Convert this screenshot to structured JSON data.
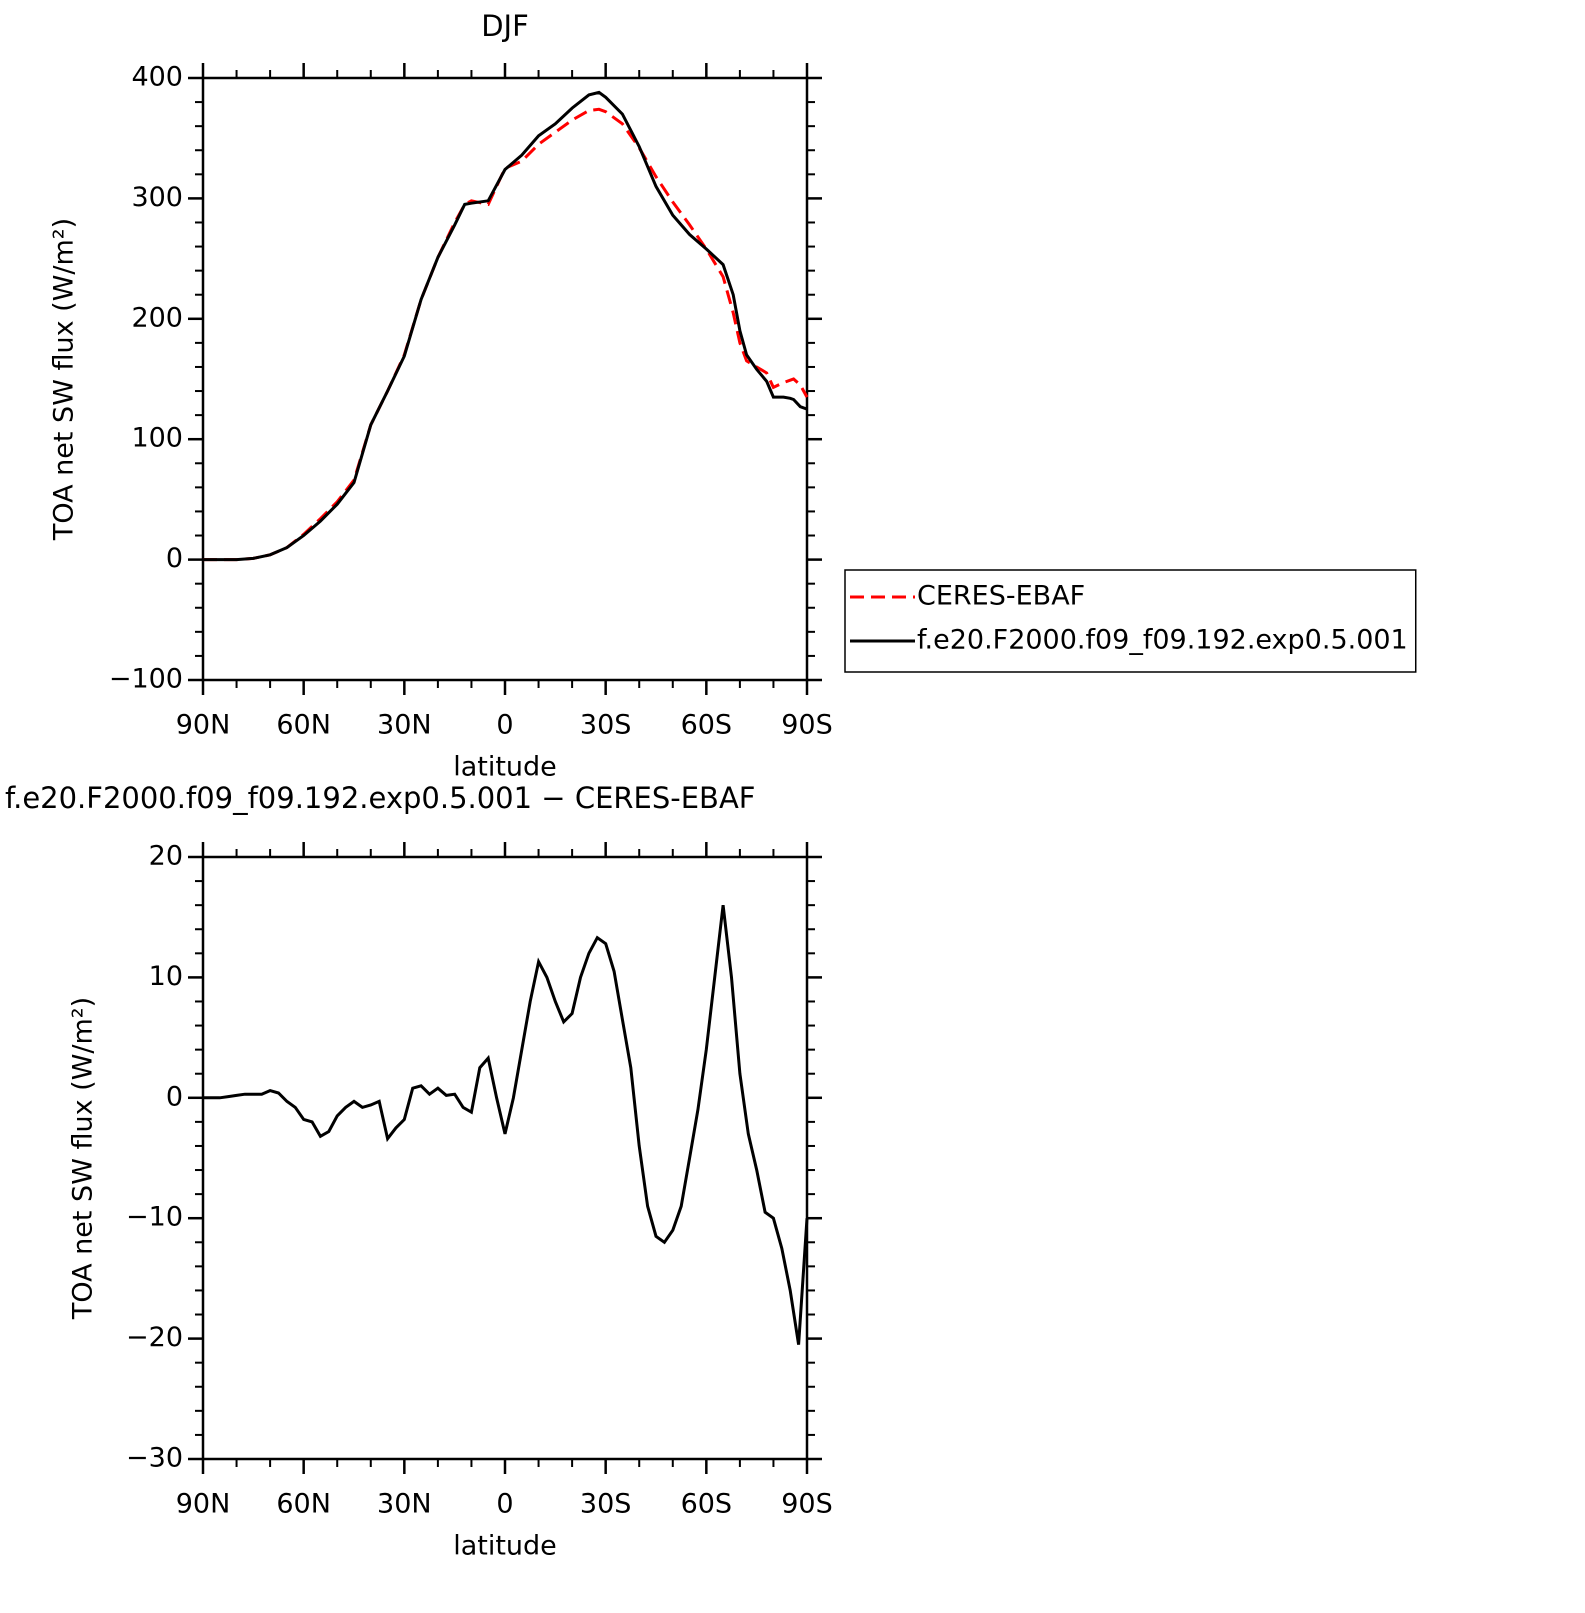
{
  "chart_data": [
    {
      "type": "line",
      "title": "DJF",
      "xlabel": "latitude",
      "ylabel": "TOA net SW flux (W/m²)",
      "xlim": [
        90,
        -90
      ],
      "xticks": [
        {
          "value": 90,
          "label": "90N"
        },
        {
          "value": 60,
          "label": "60N"
        },
        {
          "value": 30,
          "label": "30N"
        },
        0,
        {
          "value": -30,
          "label": "30S"
        },
        {
          "value": -60,
          "label": "60S"
        },
        {
          "value": -90,
          "label": "90S"
        }
      ],
      "ylim": [
        -100,
        400
      ],
      "yticks": [
        {
          "value": -100,
          "label": "−100"
        },
        0,
        100,
        200,
        300,
        400
      ],
      "x": [
        90,
        85,
        80,
        75,
        70,
        65,
        60,
        55,
        50,
        45,
        40,
        35,
        30,
        25,
        20,
        15,
        12,
        10,
        5,
        0,
        -5,
        -10,
        -15,
        -20,
        -25,
        -28,
        -30,
        -35,
        -40,
        -45,
        -50,
        -55,
        -60,
        -65,
        -68,
        -70,
        -72,
        -75,
        -78,
        -80,
        -83,
        -85,
        -86,
        -88,
        -90
      ],
      "legend": "right",
      "series": [
        {
          "name": "CERES-EBAF",
          "color": "#ff0000",
          "line_style": "dashed",
          "values": [
            0,
            0,
            0,
            1,
            4,
            10,
            21,
            34,
            48,
            66,
            112,
            140,
            170,
            216,
            251,
            280,
            295,
            298,
            295,
            325,
            331,
            345,
            355,
            365,
            373,
            374,
            372,
            362,
            342,
            318,
            297,
            278,
            258,
            235,
            205,
            180,
            165,
            160,
            155,
            143,
            147,
            149,
            150,
            145,
            135
          ]
        },
        {
          "name": "f.e20.F2000.f09_f09.192.exp0.5.001",
          "color": "#000000",
          "line_style": "solid",
          "values": [
            0,
            0,
            0,
            1,
            4,
            10,
            20,
            32,
            46,
            64,
            112,
            140,
            169,
            216,
            251,
            278,
            295,
            296,
            298,
            324,
            336,
            352,
            362,
            375,
            386,
            388,
            384,
            370,
            343,
            310,
            286,
            270,
            258,
            245,
            220,
            190,
            170,
            158,
            148,
            135,
            135,
            134,
            133,
            127,
            125
          ]
        }
      ]
    },
    {
      "type": "line",
      "title": "f.e20.F2000.f09_f09.192.exp0.5.001 − CERES-EBAF",
      "xlabel": "latitude",
      "ylabel": "TOA net SW flux (W/m²)",
      "xlim": [
        90,
        -90
      ],
      "xticks": [
        {
          "value": 90,
          "label": "90N"
        },
        {
          "value": 60,
          "label": "60N"
        },
        {
          "value": 30,
          "label": "30N"
        },
        0,
        {
          "value": -30,
          "label": "30S"
        },
        {
          "value": -60,
          "label": "60S"
        },
        {
          "value": -90,
          "label": "90S"
        }
      ],
      "ylim": [
        -30,
        20
      ],
      "yticks": [
        {
          "value": -30,
          "label": "−30"
        },
        {
          "value": -20,
          "label": "−20"
        },
        {
          "value": -10,
          "label": "−10"
        },
        0,
        10,
        20
      ],
      "x": [
        90,
        87.5,
        85,
        82.5,
        80,
        77.5,
        75,
        72.5,
        70,
        67.5,
        65,
        62.5,
        60,
        57.5,
        55,
        52.5,
        50,
        47.5,
        45,
        42.5,
        40,
        37.5,
        35,
        32.5,
        30,
        27.5,
        25,
        22.5,
        20,
        17.5,
        15,
        12.5,
        10,
        7.5,
        5,
        2.5,
        0,
        -2.5,
        -5,
        -7.5,
        -10,
        -12.5,
        -15,
        -17.5,
        -20,
        -22.5,
        -25,
        -27.5,
        -30,
        -32.5,
        -35,
        -37.5,
        -40,
        -42.5,
        -45,
        -47.5,
        -50,
        -52.5,
        -55,
        -57.5,
        -60,
        -62.5,
        -65,
        -67.5,
        -70,
        -72.5,
        -75,
        -77.5,
        -80,
        -82.5,
        -85,
        -87.5,
        -90
      ],
      "color": "#000000",
      "values": [
        0,
        0,
        0,
        0.1,
        0.2,
        0.3,
        0.3,
        0.3,
        0.6,
        0.4,
        -0.3,
        -0.8,
        -1.8,
        -2,
        -3.2,
        -2.8,
        -1.5,
        -0.8,
        -0.3,
        -0.8,
        -0.6,
        -0.3,
        -3.4,
        -2.5,
        -1.8,
        0.8,
        1,
        0.3,
        0.8,
        0.2,
        0.3,
        -0.8,
        -1.2,
        2.5,
        3.3,
        0,
        -3,
        0,
        4,
        8,
        11.3,
        10,
        8,
        6.3,
        7,
        10,
        12,
        13.3,
        12.8,
        10.5,
        6.5,
        2.5,
        -4,
        -9,
        -11.5,
        -12,
        -11,
        -9,
        -5,
        -1,
        4,
        10,
        16,
        10,
        2,
        -3,
        -6,
        -9.5,
        -10,
        -12.5,
        -16,
        -20.5,
        -10
      ]
    }
  ]
}
